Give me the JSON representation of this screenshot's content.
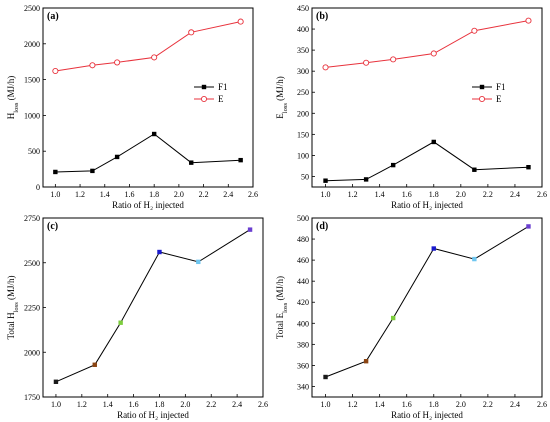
{
  "chart_data": [
    {
      "type": "line",
      "panel_label": "(a)",
      "xlabel": "Ratio of H₂ injected",
      "ylabel": "H_loss (MJ/h)",
      "xlim": [
        0.9,
        2.6
      ],
      "ylim": [
        0,
        2500
      ],
      "xticks": [
        "1.0",
        "1.2",
        "1.4",
        "1.6",
        "1.8",
        "2.0",
        "2.2",
        "2.4",
        "2.6"
      ],
      "yticks": [
        "0",
        "500",
        "1000",
        "1500",
        "2000",
        "2500"
      ],
      "legend_position": "right",
      "series": [
        {
          "name": "F1",
          "color": "#000000",
          "marker": "filled-square",
          "x": [
            1.0,
            1.3,
            1.5,
            1.8,
            2.1,
            2.5
          ],
          "y": [
            210,
            225,
            420,
            740,
            340,
            375
          ]
        },
        {
          "name": "E",
          "color": "#e8323c",
          "marker": "open-circle",
          "x": [
            1.0,
            1.3,
            1.5,
            1.8,
            2.1,
            2.5
          ],
          "y": [
            1620,
            1700,
            1740,
            1810,
            2160,
            2310
          ]
        }
      ]
    },
    {
      "type": "line",
      "panel_label": "(b)",
      "xlabel": "Ratio of H₂ injected",
      "ylabel": "E_loss (MJ/h)",
      "xlim": [
        0.9,
        2.6
      ],
      "ylim": [
        25,
        450
      ],
      "xticks": [
        "1.0",
        "1.2",
        "1.4",
        "1.6",
        "1.8",
        "2.0",
        "2.2",
        "2.4",
        "2.6"
      ],
      "yticks": [
        "50",
        "100",
        "150",
        "200",
        "250",
        "300",
        "350",
        "400",
        "450"
      ],
      "legend_position": "right",
      "series": [
        {
          "name": "F1",
          "color": "#000000",
          "marker": "filled-square",
          "x": [
            1.0,
            1.3,
            1.5,
            1.8,
            2.1,
            2.5
          ],
          "y": [
            40,
            43,
            77,
            132,
            66,
            72
          ]
        },
        {
          "name": "E",
          "color": "#e8323c",
          "marker": "open-circle",
          "x": [
            1.0,
            1.3,
            1.5,
            1.8,
            2.1,
            2.5
          ],
          "y": [
            309,
            320,
            328,
            342,
            396,
            420
          ]
        }
      ]
    },
    {
      "type": "line",
      "panel_label": "(c)",
      "xlabel": "Ratio of H₂ injected",
      "ylabel": "Total H_loss (MJ/h)",
      "xlim": [
        0.9,
        2.6
      ],
      "ylim": [
        1750,
        2750
      ],
      "xticks": [
        "1.0",
        "1.2",
        "1.4",
        "1.6",
        "1.8",
        "2.0",
        "2.2",
        "2.4",
        "2.6"
      ],
      "yticks": [
        "1750",
        "2000",
        "2250",
        "2500",
        "2750"
      ],
      "series": [
        {
          "color": "#000000",
          "x": [
            1.0,
            1.3,
            1.5,
            1.8,
            2.1,
            2.5
          ],
          "y": [
            1835,
            1930,
            2165,
            2560,
            2505,
            2685
          ],
          "marker_colors": [
            "#1a1a1a",
            "#8b4513",
            "#7ccd3c",
            "#1a1acd",
            "#6ec6f0",
            "#6a3fd0"
          ]
        }
      ]
    },
    {
      "type": "line",
      "panel_label": "(d)",
      "xlabel": "Ratio of H₂ injected",
      "ylabel": "Total E_loss (MJ/h)",
      "xlim": [
        0.9,
        2.6
      ],
      "ylim": [
        330,
        500
      ],
      "xticks": [
        "1.0",
        "1.2",
        "1.4",
        "1.6",
        "1.8",
        "2.0",
        "2.2",
        "2.4",
        "2.6"
      ],
      "yticks": [
        "340",
        "360",
        "380",
        "400",
        "420",
        "440",
        "460",
        "480",
        "500"
      ],
      "series": [
        {
          "color": "#000000",
          "x": [
            1.0,
            1.3,
            1.5,
            1.8,
            2.1,
            2.5
          ],
          "y": [
            349,
            364,
            405,
            471,
            461,
            492
          ],
          "marker_colors": [
            "#1a1a1a",
            "#8b4513",
            "#7ccd3c",
            "#1a1acd",
            "#6ec6f0",
            "#6a3fd0"
          ]
        }
      ]
    }
  ]
}
